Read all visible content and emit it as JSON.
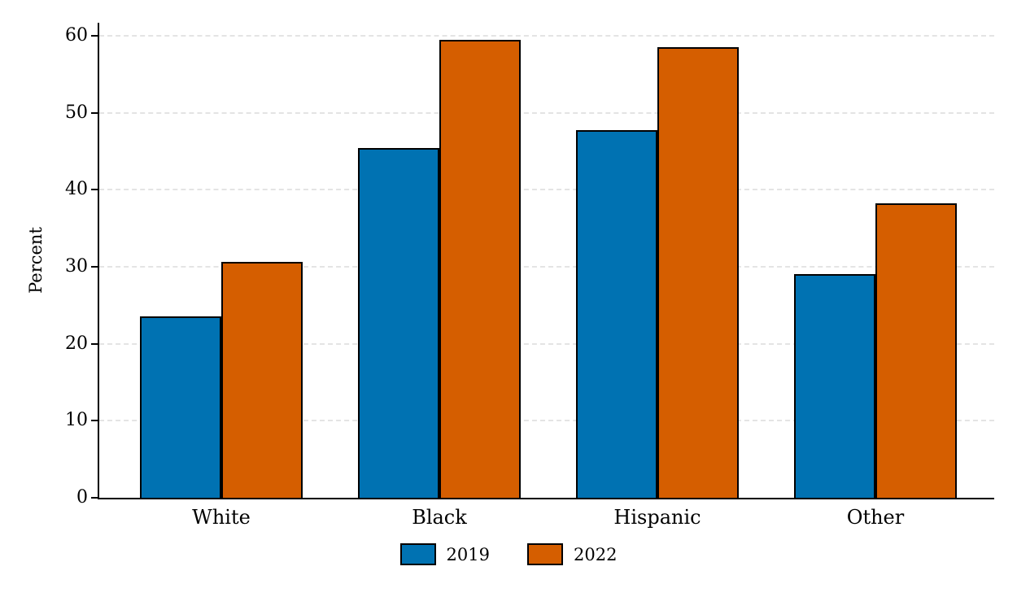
{
  "chart_data": {
    "type": "bar",
    "title": "",
    "xlabel": "",
    "ylabel": "Percent",
    "categories": [
      "White",
      "Black",
      "Hispanic",
      "Other"
    ],
    "series": [
      {
        "name": "2019",
        "color": "#0072B2",
        "values": [
          23.6,
          45.4,
          47.7,
          29.1
        ]
      },
      {
        "name": "2022",
        "color": "#D55E00",
        "values": [
          30.6,
          59.5,
          58.5,
          38.2
        ]
      }
    ],
    "ylim": [
      0,
      60
    ],
    "yticks": [
      0,
      10,
      20,
      30,
      40,
      50,
      60
    ],
    "grid": "horizontal-dashed",
    "legend_position": "bottom",
    "bar_border_color": "#000000",
    "background_color": "#ffffff"
  }
}
